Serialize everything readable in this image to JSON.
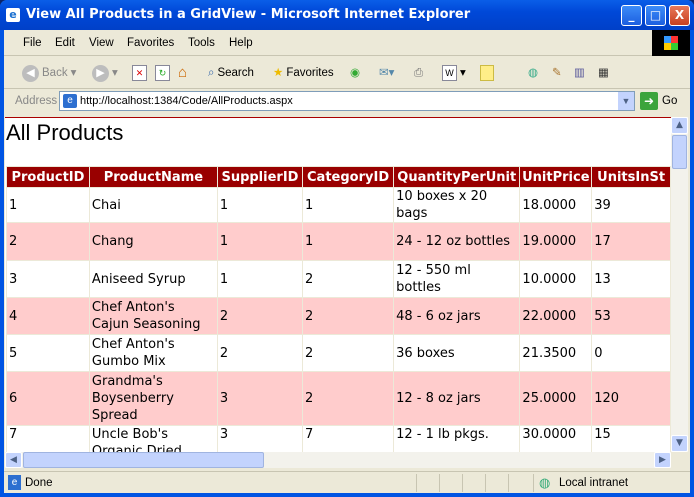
{
  "window": {
    "title": "View All Products in a GridView - Microsoft Internet Explorer",
    "minimize": "_",
    "maximize": "□",
    "close": "X"
  },
  "menu": [
    "File",
    "Edit",
    "View",
    "Favorites",
    "Tools",
    "Help"
  ],
  "toolbar": {
    "back": "Back",
    "search": "Search",
    "favorites": "Favorites"
  },
  "address": {
    "label": "Address",
    "url": "http://localhost:1384/Code/AllProducts.aspx",
    "go": "Go"
  },
  "page": {
    "heading": "All Products",
    "columns": [
      "ProductID",
      "ProductName",
      "SupplierID",
      "CategoryID",
      "QuantityPerUnit",
      "UnitPrice",
      "UnitsInSt"
    ],
    "rows": [
      [
        "1",
        "Chai",
        "1",
        "1",
        "10 boxes x 20 bags",
        "18.0000",
        "39"
      ],
      [
        "2",
        "Chang",
        "1",
        "1",
        "24 - 12 oz bottles",
        "19.0000",
        "17"
      ],
      [
        "3",
        "Aniseed Syrup",
        "1",
        "2",
        "12 - 550 ml bottles",
        "10.0000",
        "13"
      ],
      [
        "4",
        "Chef Anton's Cajun Seasoning",
        "2",
        "2",
        "48 - 6 oz jars",
        "22.0000",
        "53"
      ],
      [
        "5",
        "Chef Anton's Gumbo Mix",
        "2",
        "2",
        "36 boxes",
        "21.3500",
        "0"
      ],
      [
        "6",
        "Grandma's Boysenberry Spread",
        "3",
        "2",
        "12 - 8 oz jars",
        "25.0000",
        "120"
      ],
      [
        "7",
        "Uncle Bob's Organic Dried Pears",
        "3",
        "7",
        "12 - 1 lb pkgs.",
        "30.0000",
        "15"
      ]
    ]
  },
  "status": {
    "text": "Done",
    "zone": "Local intranet"
  },
  "colors": {
    "header": "#990000",
    "alt_row": "#ffcccc"
  }
}
